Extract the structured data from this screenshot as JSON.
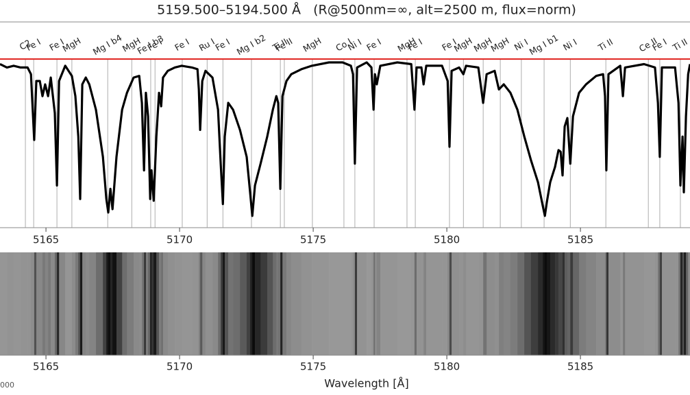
{
  "chart_data": {
    "type": "line",
    "title": "5159.500–5194.500 Å   (R@500nm=∞, alt=2500 m, flux=norm)",
    "x_label": "Wavelength [Å]",
    "corner_label": "000",
    "xlim": [
      5163.28,
      5189.1
    ],
    "ylim": [
      0,
      1.22
    ],
    "xticks": [
      5165,
      5170,
      5175,
      5180,
      5185
    ],
    "continuum": 1,
    "continuum_color": "#e0201b",
    "color": "#000000",
    "x": [
      5163.28,
      5163.54,
      5163.79,
      5164.05,
      5164.31,
      5164.44,
      5164.56,
      5164.64,
      5164.77,
      5164.87,
      5164.97,
      5165.08,
      5165.18,
      5165.33,
      5165.41,
      5165.49,
      5165.72,
      5165.97,
      5166.1,
      5166.21,
      5166.28,
      5166.36,
      5166.49,
      5166.62,
      5166.87,
      5167.13,
      5167.26,
      5167.33,
      5167.41,
      5167.49,
      5167.64,
      5167.85,
      5168.03,
      5168.28,
      5168.49,
      5168.59,
      5168.67,
      5168.74,
      5168.82,
      5168.9,
      5168.95,
      5169.03,
      5169.13,
      5169.23,
      5169.31,
      5169.38,
      5169.56,
      5169.82,
      5170.08,
      5170.46,
      5170.67,
      5170.72,
      5170.77,
      5170.85,
      5170.97,
      5171.23,
      5171.44,
      5171.54,
      5171.62,
      5171.69,
      5171.82,
      5172.0,
      5172.26,
      5172.51,
      5172.64,
      5172.72,
      5172.82,
      5173.03,
      5173.28,
      5173.49,
      5173.62,
      5173.69,
      5173.77,
      5173.85,
      5174.0,
      5174.18,
      5174.56,
      5174.95,
      5175.59,
      5176.1,
      5176.41,
      5176.49,
      5176.56,
      5176.64,
      5177.0,
      5177.18,
      5177.26,
      5177.31,
      5177.38,
      5177.51,
      5178.15,
      5178.67,
      5178.79,
      5178.87,
      5179.05,
      5179.13,
      5179.23,
      5179.82,
      5180.03,
      5180.1,
      5180.18,
      5180.46,
      5180.62,
      5180.72,
      5181.18,
      5181.36,
      5181.49,
      5181.79,
      5181.95,
      5182.13,
      5182.38,
      5182.64,
      5182.9,
      5183.15,
      5183.41,
      5183.59,
      5183.67,
      5183.74,
      5183.87,
      5184.05,
      5184.18,
      5184.26,
      5184.33,
      5184.41,
      5184.51,
      5184.62,
      5184.72,
      5184.95,
      5185.21,
      5185.59,
      5185.85,
      5185.92,
      5185.97,
      5186.05,
      5186.49,
      5186.59,
      5186.67,
      5187.38,
      5187.79,
      5187.9,
      5187.97,
      5188.05,
      5188.54,
      5188.67,
      5188.74,
      5188.82,
      5188.87,
      5188.95,
      5189.03,
      5189.1
    ],
    "values": [
      0.97,
      0.95,
      0.96,
      0.95,
      0.95,
      0.91,
      0.52,
      0.87,
      0.87,
      0.78,
      0.85,
      0.78,
      0.89,
      0.68,
      0.25,
      0.87,
      0.96,
      0.9,
      0.78,
      0.54,
      0.17,
      0.85,
      0.89,
      0.85,
      0.7,
      0.42,
      0.17,
      0.09,
      0.23,
      0.11,
      0.42,
      0.7,
      0.8,
      0.89,
      0.9,
      0.74,
      0.34,
      0.8,
      0.66,
      0.17,
      0.34,
      0.16,
      0.54,
      0.8,
      0.72,
      0.89,
      0.93,
      0.95,
      0.96,
      0.95,
      0.94,
      0.82,
      0.58,
      0.87,
      0.93,
      0.89,
      0.7,
      0.38,
      0.14,
      0.54,
      0.74,
      0.7,
      0.58,
      0.42,
      0.21,
      0.07,
      0.25,
      0.38,
      0.54,
      0.7,
      0.78,
      0.74,
      0.23,
      0.78,
      0.87,
      0.91,
      0.94,
      0.96,
      0.98,
      0.98,
      0.96,
      0.91,
      0.38,
      0.95,
      0.98,
      0.95,
      0.7,
      0.91,
      0.85,
      0.96,
      0.98,
      0.97,
      0.7,
      0.95,
      0.95,
      0.85,
      0.96,
      0.96,
      0.87,
      0.48,
      0.93,
      0.95,
      0.91,
      0.96,
      0.95,
      0.74,
      0.91,
      0.93,
      0.82,
      0.85,
      0.8,
      0.7,
      0.54,
      0.4,
      0.27,
      0.13,
      0.07,
      0.15,
      0.27,
      0.36,
      0.46,
      0.45,
      0.31,
      0.6,
      0.65,
      0.38,
      0.66,
      0.8,
      0.85,
      0.9,
      0.91,
      0.78,
      0.34,
      0.91,
      0.96,
      0.78,
      0.95,
      0.97,
      0.95,
      0.74,
      0.42,
      0.95,
      0.95,
      0.74,
      0.25,
      0.54,
      0.21,
      0.66,
      0.91,
      0.97
    ],
    "lines": [
      {
        "wavelength": 5164.23,
        "label": "C2"
      },
      {
        "wavelength": 5164.54,
        "label": "Fe I"
      },
      {
        "wavelength": 5165.41,
        "label": "Fe I"
      },
      {
        "wavelength": 5165.97,
        "label": "MgH"
      },
      {
        "wavelength": 5167.31,
        "label": "Mg I b4"
      },
      {
        "wavelength": 5168.21,
        "label": "MgH"
      },
      {
        "wavelength": 5168.92,
        "label": "Fe I b3"
      },
      {
        "wavelength": 5169.08,
        "label": "Fe I"
      },
      {
        "wavelength": 5170.1,
        "label": "Fe I"
      },
      {
        "wavelength": 5171.03,
        "label": "Ru I"
      },
      {
        "wavelength": 5171.62,
        "label": "Fe I"
      },
      {
        "wavelength": 5172.69,
        "label": "Mg I b2"
      },
      {
        "wavelength": 5173.77,
        "label": "Ti II"
      },
      {
        "wavelength": 5173.92,
        "label": "Fe II"
      },
      {
        "wavelength": 5174.97,
        "label": "MgH"
      },
      {
        "wavelength": 5176.15,
        "label": "Co I"
      },
      {
        "wavelength": 5176.56,
        "label": "Ni I"
      },
      {
        "wavelength": 5177.28,
        "label": "Fe I"
      },
      {
        "wavelength": 5178.51,
        "label": "MgH"
      },
      {
        "wavelength": 5178.82,
        "label": "Fe I"
      },
      {
        "wavelength": 5180.1,
        "label": "Fe I"
      },
      {
        "wavelength": 5180.62,
        "label": "MgH"
      },
      {
        "wavelength": 5181.36,
        "label": "MgH"
      },
      {
        "wavelength": 5182.0,
        "label": "MgH"
      },
      {
        "wavelength": 5182.79,
        "label": "Ni I"
      },
      {
        "wavelength": 5183.64,
        "label": "Mg I b1"
      },
      {
        "wavelength": 5184.62,
        "label": "Ni I"
      },
      {
        "wavelength": 5185.95,
        "label": "Ti II"
      },
      {
        "wavelength": 5187.54,
        "label": "Ce II"
      },
      {
        "wavelength": 5187.97,
        "label": "Fe I"
      },
      {
        "wavelength": 5188.74,
        "label": "Ti II"
      }
    ]
  }
}
